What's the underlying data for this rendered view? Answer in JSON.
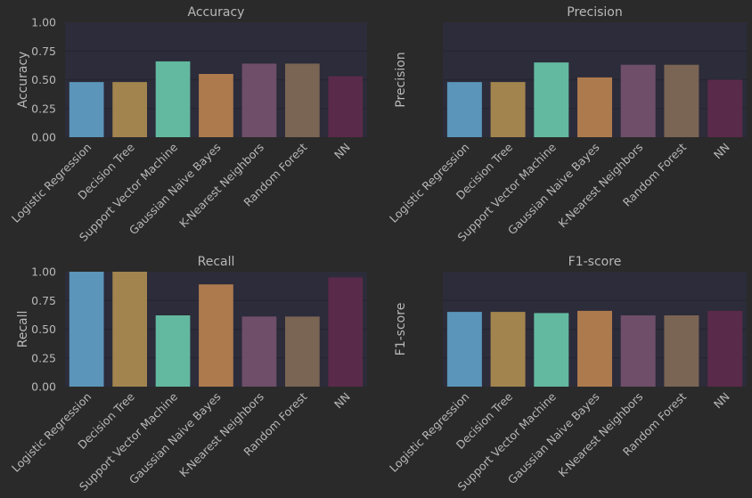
{
  "colors": {
    "background": "#2a2a2a",
    "plot_background": "#2c2c3a",
    "grid": "#262633",
    "text": "#b8b8b8",
    "bars": [
      "#5b95b9",
      "#a2844e",
      "#63b9a0",
      "#ad7a4e",
      "#6e4e69",
      "#7a6453",
      "#5a2a4a"
    ]
  },
  "chart_data": [
    {
      "type": "bar",
      "title": "Accuracy",
      "ylabel": "Accuracy",
      "xlabel": "",
      "ylim": [
        0,
        1
      ],
      "yticks": [
        "0.00",
        "0.25",
        "0.50",
        "0.75",
        "1.00"
      ],
      "show_yticks": true,
      "grid": true,
      "categories": [
        "Logistic Regression",
        "Decision Tree",
        "Support Vector Machine",
        "Gaussian Naive Bayes",
        "K-Nearest Neighbors",
        "Random Forest",
        "NN"
      ],
      "values": [
        0.48,
        0.48,
        0.66,
        0.55,
        0.64,
        0.64,
        0.53
      ]
    },
    {
      "type": "bar",
      "title": "Precision",
      "ylabel": "Precision",
      "xlabel": "",
      "ylim": [
        0,
        1
      ],
      "yticks": [],
      "show_yticks": false,
      "grid": true,
      "categories": [
        "Logistic Regression",
        "Decision Tree",
        "Support Vector Machine",
        "Gaussian Naive Bayes",
        "K-Nearest Neighbors",
        "Random Forest",
        "NN"
      ],
      "values": [
        0.48,
        0.48,
        0.65,
        0.52,
        0.63,
        0.63,
        0.5
      ]
    },
    {
      "type": "bar",
      "title": "Recall",
      "ylabel": "Recall",
      "xlabel": "",
      "ylim": [
        0,
        1
      ],
      "yticks": [
        "0.00",
        "0.25",
        "0.50",
        "0.75",
        "1.00"
      ],
      "show_yticks": true,
      "grid": true,
      "categories": [
        "Logistic Regression",
        "Decision Tree",
        "Support Vector Machine",
        "Gaussian Naive Bayes",
        "K-Nearest Neighbors",
        "Random Forest",
        "NN"
      ],
      "values": [
        1.0,
        1.0,
        0.62,
        0.89,
        0.61,
        0.61,
        0.95
      ]
    },
    {
      "type": "bar",
      "title": "F1-score",
      "ylabel": "F1-score",
      "xlabel": "",
      "ylim": [
        0,
        1
      ],
      "yticks": [],
      "show_yticks": false,
      "grid": true,
      "categories": [
        "Logistic Regression",
        "Decision Tree",
        "Support Vector Machine",
        "Gaussian Naive Bayes",
        "K-Nearest Neighbors",
        "Random Forest",
        "NN"
      ],
      "values": [
        0.65,
        0.65,
        0.64,
        0.66,
        0.62,
        0.62,
        0.66
      ]
    }
  ]
}
